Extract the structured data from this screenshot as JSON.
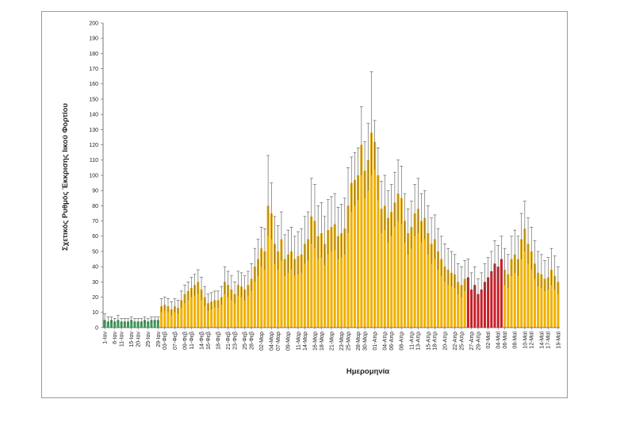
{
  "chart_data": {
    "type": "bar",
    "xlabel": "Ημερομηνία",
    "ylabel": "Σχετικός Ρυθμός Έκκρισης Ιικού Φορτίου",
    "ylim": [
      0,
      200
    ],
    "yticks": [
      0,
      10,
      20,
      30,
      40,
      50,
      60,
      70,
      80,
      90,
      100,
      110,
      120,
      130,
      140,
      150,
      160,
      170,
      180,
      190,
      200
    ],
    "grid": false,
    "error_bars": true,
    "colors": {
      "green": "#3a9a5a",
      "orange": "#f0b000",
      "red": "#c81e28",
      "error": "#555555"
    },
    "x_tick_labels": [
      "1-Ιαν",
      "6-Ιαν",
      "11-Ιαν",
      "15-Ιαν",
      "20-Ιαν",
      "25-Ιαν",
      "29-Ιαν",
      "03-Φεβ",
      "07-Φεβ",
      "09-Φεβ",
      "11-Φεβ",
      "14-Φεβ",
      "16-Φεβ",
      "18-Φεβ",
      "21-Φεβ",
      "23-Φεβ",
      "25-Φεβ",
      "28-Φεβ",
      "02-Μαρ",
      "04-Μαρ",
      "07-Μαρ",
      "09-Μαρ",
      "11-Μαρ",
      "14-Μαρ",
      "16-Μαρ",
      "18-Μαρ",
      "21-Μαρ",
      "23-Μαρ",
      "25-Μαρ",
      "28-Μαρ",
      "30-Μαρ",
      "01-Απρ",
      "04-Απρ",
      "06-Απρ",
      "08-Απρ",
      "11-Απρ",
      "13-Απρ",
      "15-Απρ",
      "18-Απρ",
      "20-Απρ",
      "22-Απρ",
      "25-Απρ",
      "27-Απρ",
      "29-Απρ",
      "02-Μαϊ",
      "04-Μαϊ",
      "06-Μαϊ",
      "08-Μαϊ",
      "10-Μαϊ",
      "12-Μαϊ",
      "14-Μαϊ",
      "17-Μαϊ",
      "19-Μαϊ"
    ],
    "bar_color_codes": "gggggggggggggggggoooooooooooooooooooooooooooooooooooooooooooooooooooooooooooooooooooooooooooooooooooooooooooorrrrrrrrrrrooooooooooooooooooooooooooooooooooooooooooooooooooooooooooooooooooooooooooooooooooooooooooooooooooooo",
    "values": [
      5,
      4,
      5,
      4,
      5,
      4,
      4,
      4,
      5,
      4,
      4,
      4,
      5,
      4,
      5,
      5,
      5,
      14,
      15,
      14,
      12,
      14,
      13,
      18,
      22,
      24,
      26,
      28,
      30,
      25,
      20,
      16,
      17,
      18,
      18,
      20,
      30,
      28,
      25,
      22,
      28,
      27,
      25,
      28,
      32,
      40,
      45,
      52,
      50,
      80,
      75,
      55,
      50,
      58,
      45,
      48,
      50,
      45,
      47,
      48,
      55,
      58,
      73,
      70,
      60,
      62,
      55,
      64,
      66,
      68,
      60,
      62,
      65,
      80,
      95,
      97,
      100,
      120,
      103,
      110,
      128,
      122,
      100,
      78,
      80,
      72,
      76,
      82,
      88,
      85,
      70,
      62,
      66,
      75,
      78,
      70,
      72,
      62,
      55,
      58,
      50,
      45,
      40,
      38,
      36,
      35,
      30,
      28,
      32,
      33,
      25,
      28,
      22,
      25,
      30,
      33,
      37,
      42,
      40,
      45,
      38,
      35,
      45,
      48,
      45,
      58,
      65,
      55,
      50,
      42,
      36,
      35,
      32,
      33,
      38,
      34,
      30
    ],
    "error_upper": [
      9,
      7,
      7,
      6,
      8,
      6,
      6,
      6,
      7,
      6,
      6,
      6,
      7,
      6,
      7,
      7,
      7,
      19,
      20,
      19,
      17,
      19,
      18,
      24,
      28,
      30,
      33,
      35,
      38,
      33,
      27,
      22,
      23,
      24,
      24,
      27,
      40,
      37,
      34,
      30,
      37,
      36,
      34,
      37,
      42,
      52,
      58,
      66,
      65,
      113,
      95,
      73,
      67,
      76,
      61,
      64,
      66,
      60,
      63,
      65,
      73,
      76,
      98,
      94,
      80,
      82,
      73,
      84,
      86,
      88,
      79,
      81,
      85,
      105,
      112,
      115,
      118,
      145,
      122,
      134,
      168,
      136,
      118,
      96,
      100,
      90,
      94,
      102,
      110,
      106,
      88,
      78,
      83,
      94,
      98,
      88,
      90,
      80,
      72,
      74,
      65,
      60,
      55,
      52,
      50,
      48,
      42,
      40,
      44,
      45,
      36,
      40,
      32,
      36,
      42,
      46,
      50,
      57,
      54,
      60,
      52,
      48,
      60,
      64,
      60,
      75,
      83,
      72,
      66,
      57,
      50,
      48,
      44,
      46,
      52,
      47,
      40
    ],
    "error_lower": [
      3,
      2,
      3,
      2,
      3,
      2,
      2,
      2,
      3,
      2,
      2,
      2,
      3,
      2,
      3,
      3,
      3,
      10,
      11,
      10,
      8,
      10,
      9,
      13,
      16,
      18,
      20,
      21,
      22,
      18,
      14,
      11,
      12,
      13,
      13,
      15,
      22,
      20,
      18,
      16,
      21,
      20,
      18,
      21,
      24,
      30,
      34,
      40,
      38,
      60,
      58,
      42,
      38,
      44,
      34,
      36,
      38,
      34,
      35,
      36,
      42,
      44,
      55,
      52,
      45,
      46,
      41,
      48,
      50,
      51,
      45,
      46,
      48,
      62,
      76,
      80,
      84,
      100,
      85,
      90,
      100,
      104,
      84,
      62,
      64,
      56,
      60,
      66,
      70,
      68,
      56,
      48,
      52,
      60,
      62,
      56,
      58,
      48,
      42,
      45,
      38,
      34,
      30,
      28,
      27,
      26,
      22,
      20,
      24,
      25,
      18,
      20,
      15,
      18,
      22,
      24,
      28,
      32,
      30,
      34,
      28,
      26,
      34,
      36,
      34,
      45,
      50,
      42,
      38,
      32,
      27,
      26,
      24,
      25,
      28,
      25,
      22
    ]
  }
}
